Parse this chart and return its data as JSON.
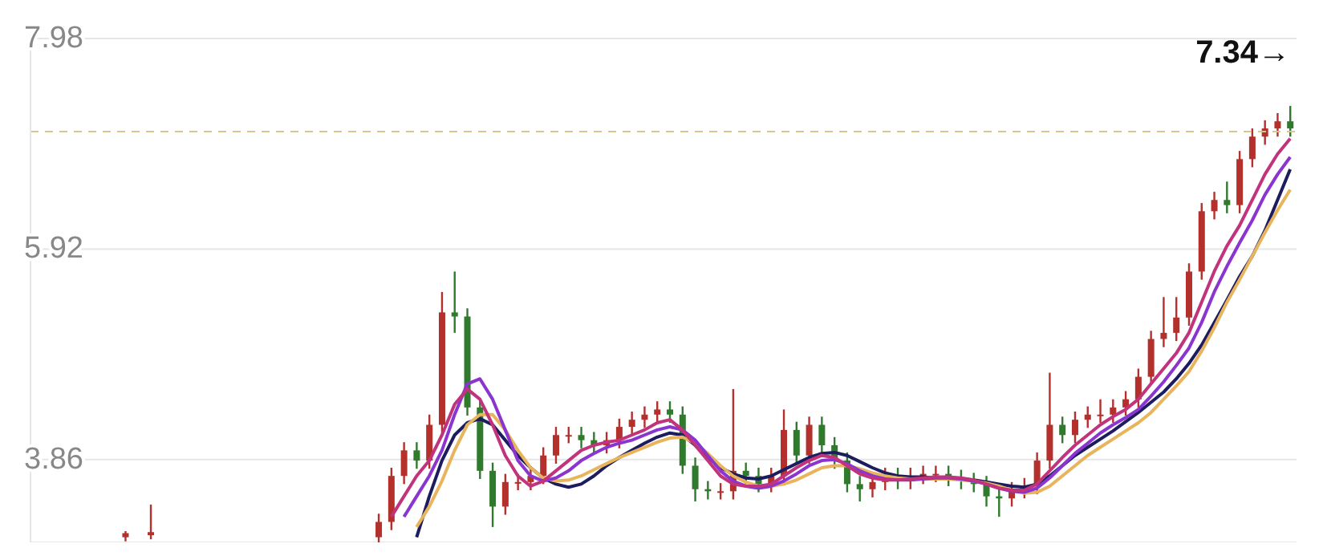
{
  "chart_data": {
    "type": "candlestick",
    "categories": [
      null,
      null,
      null,
      null,
      null,
      null,
      null,
      null,
      null,
      null,
      null,
      null,
      null,
      null,
      null,
      null,
      null,
      null,
      null,
      null,
      null,
      null,
      null,
      null,
      null,
      null,
      null,
      null,
      null,
      null,
      null,
      null,
      null,
      null,
      null,
      null,
      null,
      null,
      null,
      null,
      null,
      null,
      null,
      null,
      null,
      null,
      null,
      null,
      null,
      null,
      null,
      null,
      null,
      null,
      null,
      null,
      null,
      null,
      null,
      null,
      null,
      null,
      null,
      null,
      null,
      null,
      null,
      null,
      null,
      null,
      null,
      null,
      null,
      null,
      null,
      null,
      null,
      null,
      null,
      null,
      null,
      null,
      null,
      null,
      null,
      null,
      null,
      null,
      null,
      null,
      null,
      null,
      null,
      null,
      null,
      null,
      null,
      null,
      null,
      null
    ],
    "ohlc": [
      null,
      null,
      null,
      null,
      null,
      null,
      null,
      [
        3.1,
        3.16,
        3.06,
        3.14
      ],
      null,
      [
        3.12,
        3.42,
        3.08,
        3.15
      ],
      null,
      null,
      null,
      null,
      null,
      null,
      null,
      null,
      null,
      null,
      null,
      null,
      null,
      null,
      null,
      null,
      null,
      [
        3.1,
        3.33,
        3.05,
        3.25
      ],
      [
        3.25,
        3.78,
        3.17,
        3.7
      ],
      [
        3.7,
        4.03,
        3.62,
        3.95
      ],
      [
        3.95,
        4.03,
        3.77,
        3.85
      ],
      [
        3.85,
        4.3,
        3.77,
        4.2
      ],
      [
        4.2,
        5.5,
        4.12,
        5.3
      ],
      [
        5.3,
        5.7,
        5.1,
        5.26
      ],
      [
        5.26,
        5.34,
        4.29,
        4.37
      ],
      [
        4.37,
        4.45,
        3.67,
        3.75
      ],
      [
        3.75,
        3.83,
        3.2,
        3.4
      ],
      [
        3.4,
        3.72,
        3.32,
        3.64
      ],
      [
        3.64,
        3.72,
        3.56,
        3.64
      ],
      [
        3.64,
        3.78,
        3.56,
        3.7
      ],
      [
        3.7,
        3.98,
        3.62,
        3.9
      ],
      [
        3.9,
        4.18,
        3.82,
        4.1
      ],
      [
        4.1,
        4.18,
        4.02,
        4.1
      ],
      [
        4.1,
        4.18,
        3.97,
        4.05
      ],
      [
        4.05,
        4.13,
        3.92,
        4.0
      ],
      [
        4.0,
        4.13,
        3.92,
        4.05
      ],
      [
        4.05,
        4.26,
        3.97,
        4.18
      ],
      [
        4.18,
        4.33,
        4.1,
        4.25
      ],
      [
        4.25,
        4.38,
        4.17,
        4.3
      ],
      [
        4.3,
        4.43,
        4.22,
        4.35
      ],
      [
        4.35,
        4.43,
        4.22,
        4.3
      ],
      [
        4.3,
        4.38,
        3.72,
        3.8
      ],
      [
        3.8,
        3.88,
        3.45,
        3.57
      ],
      [
        3.57,
        3.65,
        3.47,
        3.55
      ],
      [
        3.55,
        3.63,
        3.47,
        3.55
      ],
      [
        3.55,
        4.55,
        3.47,
        3.75
      ],
      [
        3.75,
        3.83,
        3.62,
        3.7
      ],
      [
        3.7,
        3.78,
        3.54,
        3.62
      ],
      [
        3.62,
        3.78,
        3.54,
        3.7
      ],
      [
        3.7,
        4.35,
        3.62,
        4.15
      ],
      [
        4.15,
        4.23,
        3.82,
        3.9
      ],
      [
        3.9,
        4.28,
        3.82,
        4.2
      ],
      [
        4.2,
        4.28,
        3.92,
        4.0
      ],
      [
        4.0,
        4.08,
        3.77,
        3.85
      ],
      [
        3.85,
        3.93,
        3.54,
        3.62
      ],
      [
        3.62,
        3.7,
        3.45,
        3.57
      ],
      [
        3.57,
        3.72,
        3.49,
        3.64
      ],
      [
        3.64,
        3.78,
        3.56,
        3.7
      ],
      [
        3.7,
        3.78,
        3.57,
        3.65
      ],
      [
        3.65,
        3.78,
        3.57,
        3.7
      ],
      [
        3.7,
        3.8,
        3.62,
        3.72
      ],
      [
        3.72,
        3.8,
        3.64,
        3.72
      ],
      [
        3.72,
        3.8,
        3.6,
        3.68
      ],
      [
        3.68,
        3.76,
        3.57,
        3.65
      ],
      [
        3.65,
        3.73,
        3.54,
        3.62
      ],
      [
        3.62,
        3.7,
        3.4,
        3.5
      ],
      [
        3.5,
        3.58,
        3.3,
        3.48
      ],
      [
        3.48,
        3.64,
        3.4,
        3.56
      ],
      [
        3.56,
        3.68,
        3.48,
        3.6
      ],
      [
        3.6,
        3.93,
        3.52,
        3.85
      ],
      [
        3.85,
        4.71,
        3.77,
        4.2
      ],
      [
        4.2,
        4.28,
        4.02,
        4.1
      ],
      [
        4.1,
        4.33,
        4.02,
        4.25
      ],
      [
        4.25,
        4.38,
        4.17,
        4.3
      ],
      [
        4.3,
        4.45,
        4.22,
        4.3
      ],
      [
        4.3,
        4.45,
        4.22,
        4.37
      ],
      [
        4.37,
        4.53,
        4.29,
        4.45
      ],
      [
        4.45,
        4.75,
        4.37,
        4.67
      ],
      [
        4.67,
        5.12,
        4.59,
        5.04
      ],
      [
        5.04,
        5.45,
        4.96,
        5.1
      ],
      [
        5.1,
        5.45,
        5.02,
        5.25
      ],
      [
        5.25,
        5.78,
        5.17,
        5.7
      ],
      [
        5.7,
        6.37,
        5.62,
        6.29
      ],
      [
        6.29,
        6.48,
        6.21,
        6.4
      ],
      [
        6.4,
        6.58,
        6.27,
        6.35
      ],
      [
        6.35,
        6.88,
        6.27,
        6.8
      ],
      [
        6.8,
        7.1,
        6.72,
        7.02
      ],
      [
        7.02,
        7.18,
        6.94,
        7.1
      ],
      [
        7.1,
        7.25,
        7.02,
        7.17
      ],
      [
        7.17,
        7.32,
        7.02,
        7.1
      ]
    ],
    "series": [
      {
        "type": "line",
        "color": "#1c1c5e",
        "values": [
          null,
          null,
          null,
          null,
          null,
          null,
          null,
          null,
          null,
          null,
          null,
          null,
          null,
          null,
          null,
          null,
          null,
          null,
          null,
          null,
          null,
          null,
          null,
          null,
          null,
          null,
          null,
          null,
          null,
          null,
          3.1,
          3.5,
          3.85,
          4.1,
          4.22,
          4.26,
          4.2,
          4.05,
          3.9,
          3.78,
          3.68,
          3.62,
          3.59,
          3.62,
          3.7,
          3.8,
          3.88,
          3.95,
          4.02,
          4.08,
          4.12,
          4.1,
          4.0,
          3.88,
          3.78,
          3.72,
          3.68,
          3.67,
          3.7,
          3.76,
          3.82,
          3.88,
          3.92,
          3.93,
          3.9,
          3.84,
          3.78,
          3.73,
          3.7,
          3.69,
          3.69,
          3.68,
          3.68,
          3.67,
          3.66,
          3.64,
          3.62,
          3.6,
          3.59,
          3.62,
          3.7,
          3.8,
          3.9,
          3.98,
          4.06,
          4.14,
          4.23,
          4.32,
          4.42,
          4.52,
          4.65,
          4.8,
          4.98,
          5.2,
          5.42,
          5.65,
          5.85,
          6.1,
          6.4,
          6.7
        ]
      },
      {
        "type": "line",
        "color": "#e8b45c",
        "values": [
          null,
          null,
          null,
          null,
          null,
          null,
          null,
          null,
          null,
          null,
          null,
          null,
          null,
          null,
          null,
          null,
          null,
          null,
          null,
          null,
          null,
          null,
          null,
          null,
          null,
          null,
          null,
          null,
          null,
          null,
          3.2,
          3.4,
          3.65,
          3.95,
          4.2,
          4.3,
          4.3,
          4.15,
          3.95,
          3.78,
          3.68,
          3.65,
          3.66,
          3.7,
          3.76,
          3.82,
          3.88,
          3.93,
          3.98,
          4.03,
          4.07,
          4.08,
          4.02,
          3.92,
          3.8,
          3.7,
          3.64,
          3.6,
          3.6,
          3.62,
          3.66,
          3.72,
          3.78,
          3.8,
          3.8,
          3.77,
          3.73,
          3.7,
          3.68,
          3.67,
          3.67,
          3.67,
          3.67,
          3.66,
          3.65,
          3.63,
          3.6,
          3.56,
          3.53,
          3.54,
          3.6,
          3.7,
          3.8,
          3.9,
          3.98,
          4.06,
          4.14,
          4.22,
          4.32,
          4.45,
          4.58,
          4.72,
          4.92,
          5.15,
          5.4,
          5.62,
          5.85,
          6.08,
          6.3,
          6.5
        ]
      },
      {
        "type": "line",
        "color": "#8a35d0",
        "values": [
          null,
          null,
          null,
          null,
          null,
          null,
          null,
          null,
          null,
          null,
          null,
          null,
          null,
          null,
          null,
          null,
          null,
          null,
          null,
          null,
          null,
          null,
          null,
          null,
          null,
          null,
          null,
          null,
          null,
          3.3,
          3.5,
          3.7,
          3.95,
          4.3,
          4.6,
          4.65,
          4.45,
          4.15,
          3.85,
          3.7,
          3.65,
          3.68,
          3.75,
          3.85,
          3.92,
          3.98,
          4.02,
          4.05,
          4.1,
          4.15,
          4.18,
          4.15,
          4.05,
          3.9,
          3.75,
          3.65,
          3.6,
          3.58,
          3.6,
          3.65,
          3.72,
          3.8,
          3.85,
          3.86,
          3.82,
          3.75,
          3.7,
          3.67,
          3.66,
          3.66,
          3.67,
          3.68,
          3.68,
          3.67,
          3.65,
          3.62,
          3.58,
          3.55,
          3.54,
          3.58,
          3.68,
          3.8,
          3.92,
          4.02,
          4.12,
          4.2,
          4.27,
          4.35,
          4.48,
          4.62,
          4.78,
          4.95,
          5.2,
          5.5,
          5.75,
          5.98,
          6.2,
          6.45,
          6.65,
          6.82
        ]
      },
      {
        "type": "line",
        "color": "#c2337e",
        "values": [
          null,
          null,
          null,
          null,
          null,
          null,
          null,
          null,
          null,
          null,
          null,
          null,
          null,
          null,
          null,
          null,
          null,
          null,
          null,
          null,
          null,
          null,
          null,
          null,
          null,
          null,
          null,
          null,
          3.3,
          3.5,
          3.7,
          3.85,
          4.1,
          4.4,
          4.55,
          4.45,
          4.2,
          3.9,
          3.7,
          3.6,
          3.65,
          3.75,
          3.85,
          3.95,
          4.0,
          4.03,
          4.05,
          4.1,
          4.15,
          4.22,
          4.25,
          4.15,
          4.0,
          3.85,
          3.7,
          3.62,
          3.6,
          3.6,
          3.62,
          3.7,
          3.78,
          3.85,
          3.9,
          3.88,
          3.8,
          3.72,
          3.68,
          3.66,
          3.66,
          3.67,
          3.68,
          3.69,
          3.69,
          3.68,
          3.66,
          3.62,
          3.58,
          3.56,
          3.56,
          3.62,
          3.75,
          3.88,
          4.0,
          4.1,
          4.2,
          4.28,
          4.35,
          4.45,
          4.6,
          4.75,
          4.9,
          5.1,
          5.4,
          5.7,
          5.95,
          6.15,
          6.4,
          6.65,
          6.85,
          7.0
        ]
      }
    ],
    "ylim": [
      3.05,
      7.98
    ],
    "yticks": [
      3.86,
      5.92,
      7.98
    ],
    "grid": "y",
    "ref_lines": [
      {
        "axis": "y",
        "value": 7.07,
        "color": "#d8c78a",
        "line_style": "dashed"
      }
    ],
    "annotations": [
      "7.34→"
    ]
  }
}
